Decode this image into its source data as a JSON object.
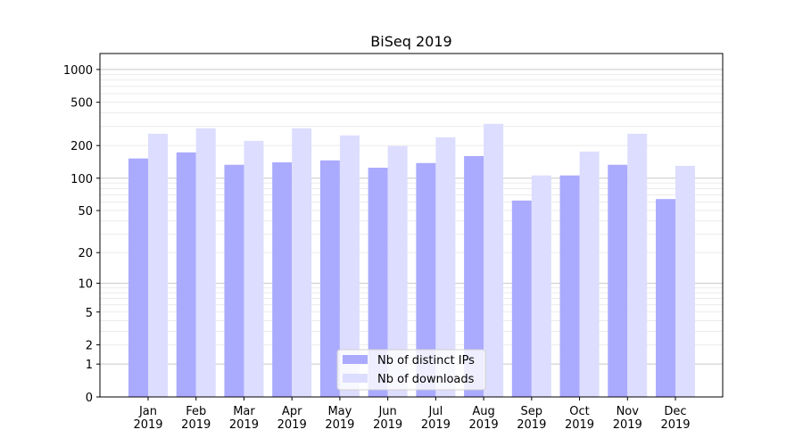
{
  "chart_data": {
    "type": "bar",
    "title": "BiSeq 2019",
    "xlabel": "",
    "ylabel": "",
    "yscale": "log(1+x)",
    "ylim": [
      0,
      1400
    ],
    "yticks": [
      0,
      1,
      2,
      5,
      10,
      20,
      50,
      100,
      200,
      500,
      1000
    ],
    "grid": true,
    "legend_placement": "bottom-center",
    "categories": [
      "Jan\n2019",
      "Feb\n2019",
      "Mar\n2019",
      "Apr\n2019",
      "May\n2019",
      "Jun\n2019",
      "Jul\n2019",
      "Aug\n2019",
      "Sep\n2019",
      "Oct\n2019",
      "Nov\n2019",
      "Dec\n2019"
    ],
    "series": [
      {
        "name": "Nb of distinct IPs",
        "color": "#aaaaff",
        "values": [
          152,
          173,
          133,
          140,
          146,
          125,
          138,
          160,
          62,
          106,
          133,
          64
        ]
      },
      {
        "name": "Nb of downloads",
        "color": "#ddddff",
        "values": [
          257,
          288,
          221,
          288,
          248,
          198,
          238,
          317,
          106,
          176,
          257,
          130
        ]
      }
    ]
  }
}
